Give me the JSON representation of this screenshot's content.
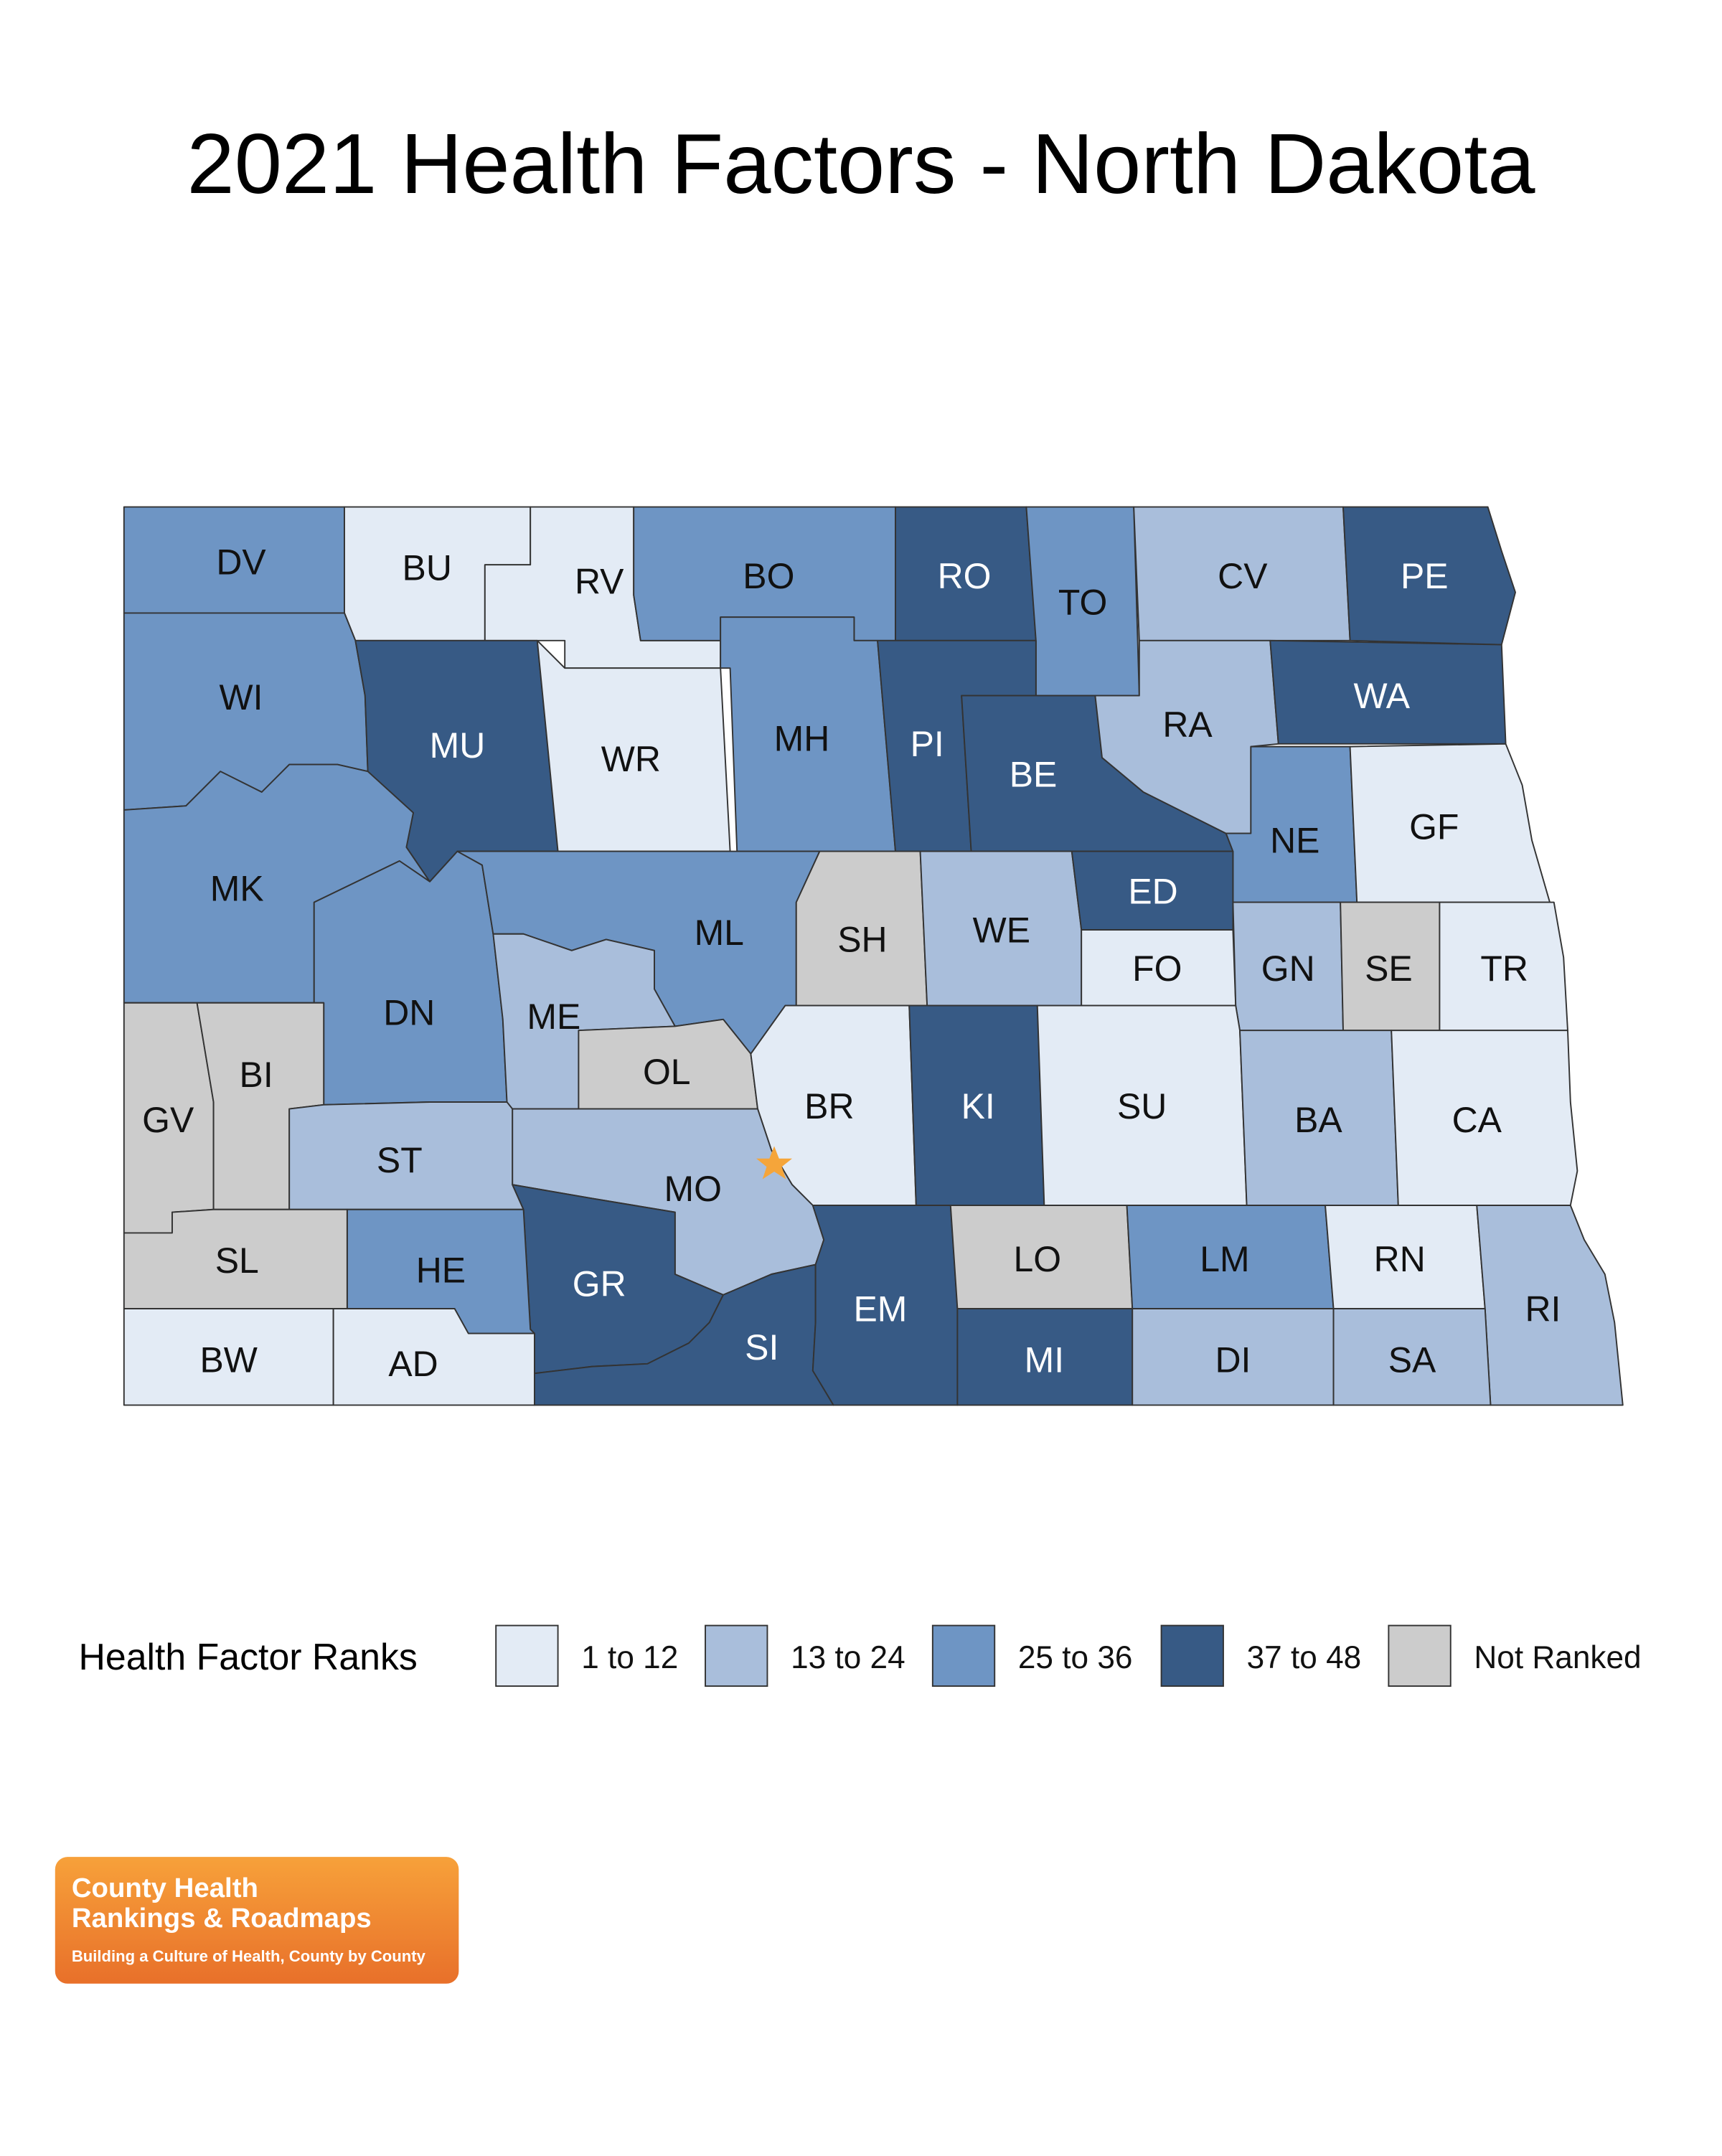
{
  "title": "2021 Health Factors - North Dakota",
  "counties": [
    {
      "code": "DV",
      "color": "#6e95c4"
    },
    {
      "code": "BU",
      "color": "#e3ebf5"
    },
    {
      "code": "RV",
      "color": "#e3ebf5"
    },
    {
      "code": "BO",
      "color": "#6e95c4"
    },
    {
      "code": "RO",
      "color": "#375a85"
    },
    {
      "code": "TO",
      "color": "#6e95c4"
    },
    {
      "code": "CV",
      "color": "#a9bedb"
    },
    {
      "code": "PE",
      "color": "#375a85"
    },
    {
      "code": "WI",
      "color": "#6e95c4"
    },
    {
      "code": "MU",
      "color": "#375a85"
    },
    {
      "code": "WR",
      "color": "#e3ebf5"
    },
    {
      "code": "MH",
      "color": "#6e95c4"
    },
    {
      "code": "PI",
      "color": "#375a85"
    },
    {
      "code": "BE",
      "color": "#375a85"
    },
    {
      "code": "RA",
      "color": "#a9bedb"
    },
    {
      "code": "WA",
      "color": "#375a85"
    },
    {
      "code": "NE",
      "color": "#6e95c4"
    },
    {
      "code": "GF",
      "color": "#e3ebf5"
    },
    {
      "code": "MK",
      "color": "#6e95c4"
    },
    {
      "code": "DN",
      "color": "#6e95c4"
    },
    {
      "code": "ML",
      "color": "#6e95c4"
    },
    {
      "code": "SH",
      "color": "#cccccc"
    },
    {
      "code": "WE",
      "color": "#a9bedb"
    },
    {
      "code": "ED",
      "color": "#375a85"
    },
    {
      "code": "FO",
      "color": "#e3ebf5"
    },
    {
      "code": "GN",
      "color": "#a9bedb"
    },
    {
      "code": "SE",
      "color": "#cccccc"
    },
    {
      "code": "TR",
      "color": "#e3ebf5"
    },
    {
      "code": "ME",
      "color": "#a9bedb"
    },
    {
      "code": "OL",
      "color": "#cccccc"
    },
    {
      "code": "BR",
      "color": "#e3ebf5"
    },
    {
      "code": "KI",
      "color": "#375a85"
    },
    {
      "code": "SU",
      "color": "#e3ebf5"
    },
    {
      "code": "BA",
      "color": "#a9bedb"
    },
    {
      "code": "CA",
      "color": "#e3ebf5"
    },
    {
      "code": "GV",
      "color": "#cccccc"
    },
    {
      "code": "BI",
      "color": "#cccccc"
    },
    {
      "code": "ST",
      "color": "#a9bedb"
    },
    {
      "code": "MO",
      "color": "#a9bedb"
    },
    {
      "code": "GR",
      "color": "#375a85"
    },
    {
      "code": "HE",
      "color": "#6e95c4"
    },
    {
      "code": "SL",
      "color": "#cccccc"
    },
    {
      "code": "BW",
      "color": "#e3ebf5"
    },
    {
      "code": "AD",
      "color": "#e3ebf5"
    },
    {
      "code": "SI",
      "color": "#375a85"
    },
    {
      "code": "EM",
      "color": "#375a85"
    },
    {
      "code": "LO",
      "color": "#cccccc"
    },
    {
      "code": "MI",
      "color": "#375a85"
    },
    {
      "code": "LM",
      "color": "#6e95c4"
    },
    {
      "code": "RN",
      "color": "#e3ebf5"
    },
    {
      "code": "RI",
      "color": "#a9bedb"
    },
    {
      "code": "DI",
      "color": "#a9bedb"
    },
    {
      "code": "SA",
      "color": "#a9bedb"
    }
  ],
  "legend": {
    "title": "Health Factor Ranks",
    "items": [
      {
        "label": "1 to 12",
        "color": "#e3ebf5"
      },
      {
        "label": "13 to 24",
        "color": "#a9bedb"
      },
      {
        "label": "25 to 36",
        "color": "#6e95c4"
      },
      {
        "label": "37 to 48",
        "color": "#375a85"
      },
      {
        "label": "Not Ranked",
        "color": "#cccccc"
      }
    ]
  },
  "logo": {
    "line1": "County Health",
    "line2": "Rankings & Roadmaps",
    "tagline": "Building a Culture of Health, County by County"
  }
}
